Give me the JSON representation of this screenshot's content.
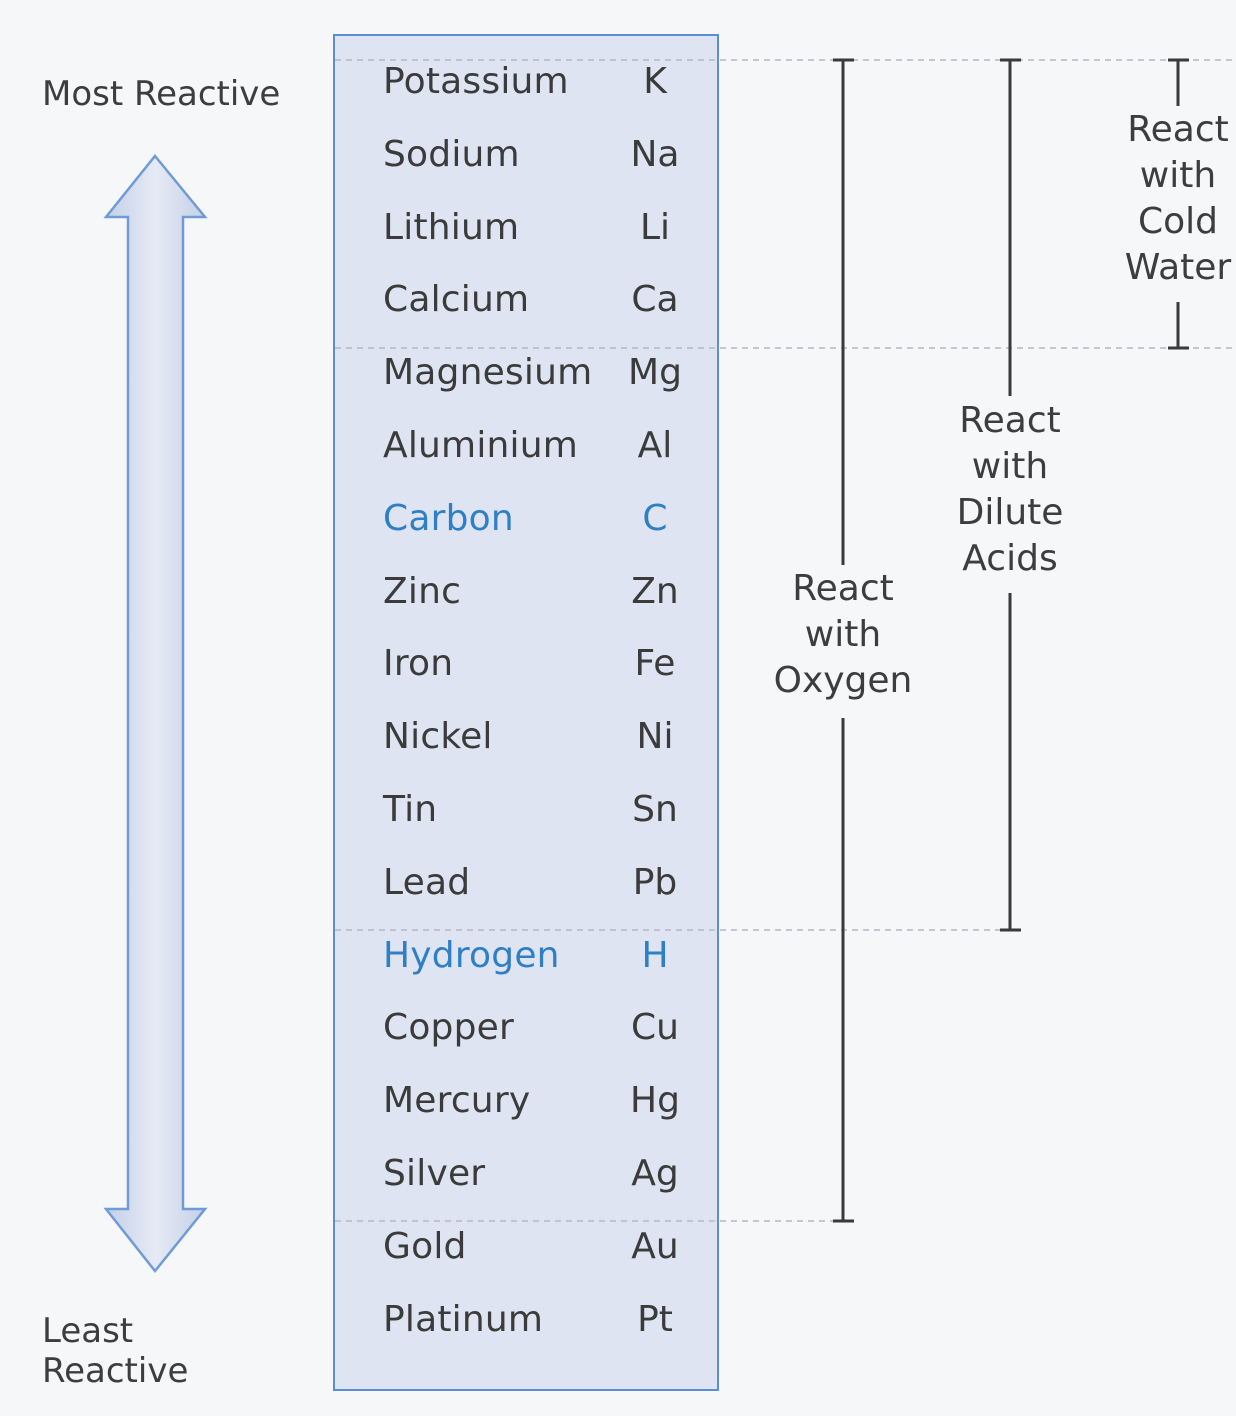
{
  "labels": {
    "most_reactive": "Most Reactive",
    "least_reactive": "Least Reactive"
  },
  "metals": [
    {
      "name": "Potassium",
      "symbol": "K"
    },
    {
      "name": "Sodium",
      "symbol": "Na"
    },
    {
      "name": "Lithium",
      "symbol": "Li"
    },
    {
      "name": "Calcium",
      "symbol": "Ca"
    },
    {
      "name": "Magnesium",
      "symbol": "Mg"
    },
    {
      "name": "Aluminium",
      "symbol": "Al"
    },
    {
      "name": "Carbon",
      "symbol": "C",
      "highlight": true
    },
    {
      "name": "Zinc",
      "symbol": "Zn"
    },
    {
      "name": "Iron",
      "symbol": "Fe"
    },
    {
      "name": "Nickel",
      "symbol": "Ni"
    },
    {
      "name": "Tin",
      "symbol": "Sn"
    },
    {
      "name": "Lead",
      "symbol": "Pb"
    },
    {
      "name": "Hydrogen",
      "symbol": "H",
      "highlight": true
    },
    {
      "name": "Copper",
      "symbol": "Cu"
    },
    {
      "name": "Mercury",
      "symbol": "Hg"
    },
    {
      "name": "Silver",
      "symbol": "Ag"
    },
    {
      "name": "Gold",
      "symbol": "Au"
    },
    {
      "name": "Platinum",
      "symbol": "Pt"
    }
  ],
  "ranges": {
    "oxygen": {
      "label": "React\nwith\nOxygen",
      "from": "Potassium",
      "to": "Silver"
    },
    "dilute_acids": {
      "label": "React\nwith\nDilute\nAcids",
      "from": "Potassium",
      "to": "Lead"
    },
    "cold_water": {
      "label": "React\nwith\nCold\nWater",
      "from": "Potassium",
      "to": "Calcium"
    }
  },
  "colors": {
    "box_border": "#5b8fd1",
    "box_fill": "#dfe4f2",
    "highlight_text": "#2f7fc6",
    "arrow_outline": "#6f9bd6",
    "arrow_fill": "#c9d5ea",
    "bracket": "#3a3a3a",
    "dashed_line": "#b4b8c0"
  }
}
